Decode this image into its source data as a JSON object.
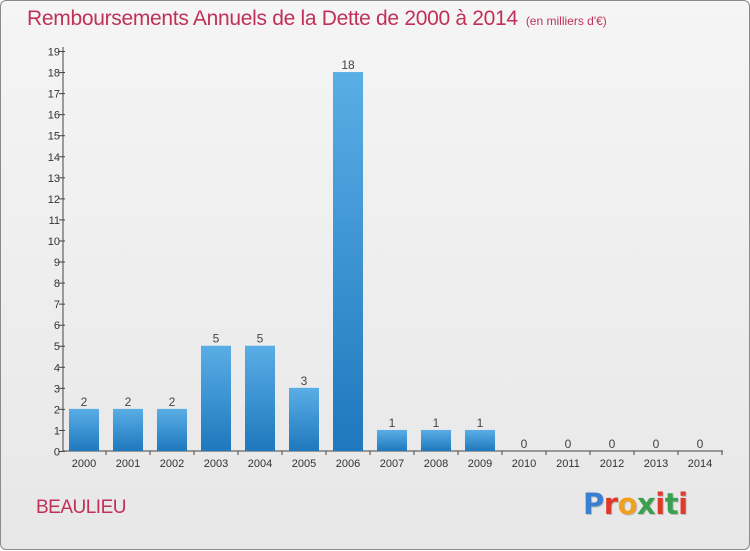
{
  "header": {
    "title": "Remboursements Annuels de la Dette de 2000 à 2014",
    "subtitle": "(en milliers d'€)"
  },
  "footer": {
    "commune": "BEAULIEU",
    "logo_text": "Proxiti"
  },
  "colors": {
    "title": "#c0305a",
    "bar_light": "#5aaee6",
    "bar_dark": "#1f78bd",
    "background": "#efefef",
    "logo_letters": [
      "#3a7fd0",
      "#e0392a",
      "#f0a020",
      "#3aa050",
      "#e0392a",
      "#3aa050",
      "#e0392a"
    ]
  },
  "chart_data": {
    "type": "bar",
    "categories": [
      "2000",
      "2001",
      "2002",
      "2003",
      "2004",
      "2005",
      "2006",
      "2007",
      "2008",
      "2009",
      "2010",
      "2011",
      "2012",
      "2013",
      "2014"
    ],
    "values": [
      2,
      2,
      2,
      5,
      5,
      3,
      18,
      1,
      1,
      1,
      0,
      0,
      0,
      0,
      0
    ],
    "ylim": [
      0,
      19
    ],
    "yticks": [
      0,
      1,
      2,
      3,
      4,
      5,
      6,
      7,
      8,
      9,
      10,
      11,
      12,
      13,
      14,
      15,
      16,
      17,
      18,
      19
    ],
    "xlabel": "",
    "ylabel": "",
    "data_labels": true,
    "grid": false
  }
}
